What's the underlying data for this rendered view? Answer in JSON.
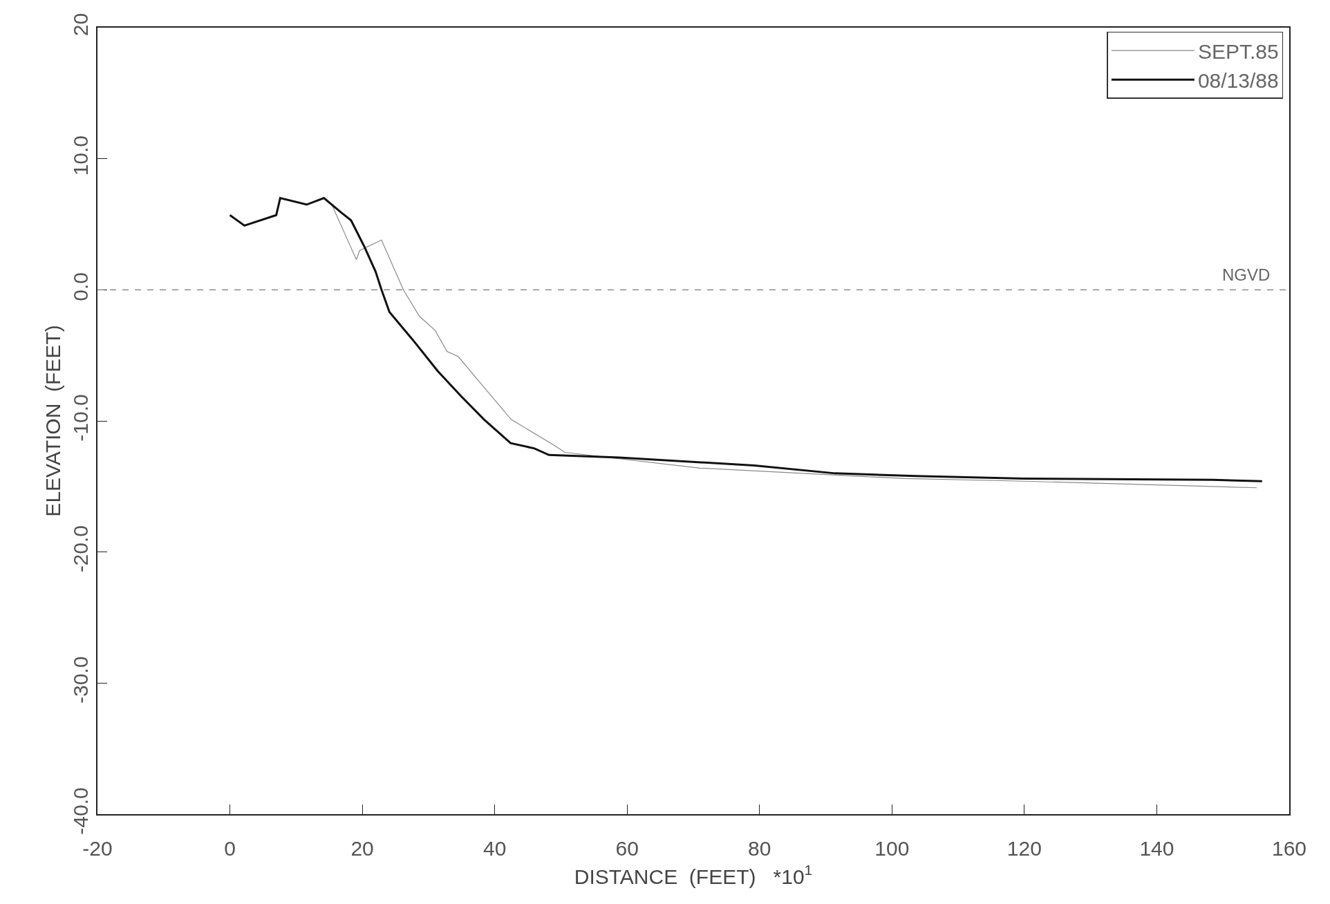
{
  "chart_data": {
    "type": "line",
    "xlabel": "DISTANCE  (FEET)   *10$^{1}$",
    "ylabel": "ELEVATION  (FEET)",
    "xlim": [
      -20,
      160
    ],
    "xticks": [
      -20,
      0,
      20,
      40,
      60,
      80,
      100,
      120,
      140,
      160
    ],
    "ylim": [
      -40,
      20
    ],
    "yticks": [
      {
        "value": -40,
        "label": "-40.0"
      },
      {
        "value": -30,
        "label": "-30.0"
      },
      {
        "value": -20,
        "label": "-20.0"
      },
      {
        "value": -10,
        "label": "-10.0"
      },
      {
        "value": 0,
        "label": "0.0"
      },
      {
        "value": 10,
        "label": "10.0"
      },
      20
    ],
    "legend": "top right",
    "marker": "none",
    "ref_lines": [
      {
        "axis": "y",
        "value": 0,
        "label": "NGVD",
        "color": "#777777",
        "line_style": "dashed"
      }
    ],
    "series": [
      {
        "name": "SEPT.85",
        "color": "#888888",
        "x": [
          0,
          2.2,
          7.0,
          7.6,
          11.6,
          14.2,
          15.4,
          19.1,
          19.6,
          22.9,
          26.2,
          28.6,
          31.0,
          32.8,
          34.5,
          39.0,
          42.5,
          48.8,
          50.6,
          71.0,
          102,
          120,
          155.1
        ],
        "values": [
          5.7,
          4.9,
          5.7,
          7.0,
          6.5,
          7.0,
          6.5,
          2.3,
          3.0,
          3.8,
          0,
          -2.0,
          -3.1,
          -4.7,
          -5.1,
          -7.8,
          -9.9,
          -11.8,
          -12.4,
          -13.6,
          -14.4,
          -14.6,
          -15.1
        ]
      },
      {
        "name": "08/13/88",
        "color": "#111111",
        "x": [
          0,
          2.2,
          7.0,
          7.6,
          11.6,
          14.2,
          16.8,
          18.3,
          20.3,
          22.0,
          22.9,
          24.1,
          27.6,
          31.4,
          34.9,
          38.4,
          42.4,
          46.0,
          48.2,
          58.8,
          79.2,
          91.4,
          103.6,
          120,
          148.5,
          155.9
        ],
        "values": [
          5.7,
          4.9,
          5.7,
          7.0,
          6.5,
          7.0,
          5.9,
          5.3,
          3.3,
          1.4,
          0,
          -1.7,
          -3.8,
          -6.2,
          -8.1,
          -9.9,
          -11.7,
          -12.1,
          -12.6,
          -12.8,
          -13.4,
          -14.0,
          -14.2,
          -14.4,
          -14.5,
          -14.6
        ]
      }
    ]
  }
}
